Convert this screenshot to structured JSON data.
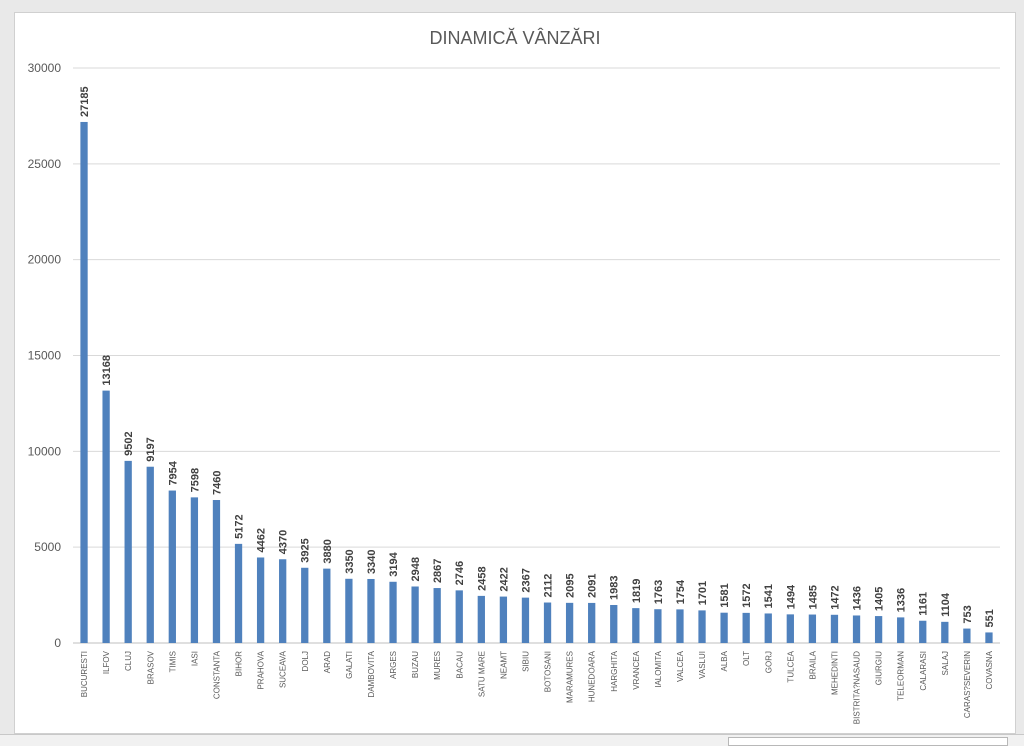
{
  "chart_data": {
    "type": "bar",
    "title": "DINAMICĂ VÂNZĂRI",
    "xlabel": "",
    "ylabel": "",
    "ylim": [
      0,
      30000
    ],
    "yticks": [
      0,
      5000,
      10000,
      15000,
      20000,
      25000,
      30000
    ],
    "grid": true,
    "legend": "none",
    "bar_color": "#4f81bd",
    "categories": [
      "BUCURESTI",
      "ILFOV",
      "CLUJ",
      "BRASOV",
      "TIMIS",
      "IASI",
      "CONSTANTA",
      "BIHOR",
      "PRAHOVA",
      "SUCEAVA",
      "DOLJ",
      "ARAD",
      "GALATI",
      "DAMBOVITA",
      "ARGES",
      "BUZAU",
      "MURES",
      "BACAU",
      "SATU MARE",
      "NEAMT",
      "SIBIU",
      "BOTOSANI",
      "MARAMURES",
      "HUNEDOARA",
      "HARGHITA",
      "VRANCEA",
      "IALOMITA",
      "VALCEA",
      "VASLUI",
      "ALBA",
      "OLT",
      "GORJ",
      "TULCEA",
      "BRAILA",
      "MEHEDINTI",
      "BISTRITA?NASAUD",
      "GIURGIU",
      "TELEORMAN",
      "CALARASI",
      "SALAJ",
      "CARAS?SEVERIN",
      "COVASNA"
    ],
    "values": [
      27185,
      13168,
      9502,
      9197,
      7954,
      7598,
      7460,
      5172,
      4462,
      4370,
      3925,
      3880,
      3350,
      3340,
      3194,
      2948,
      2867,
      2746,
      2458,
      2422,
      2367,
      2112,
      2095,
      2091,
      1983,
      1819,
      1763,
      1754,
      1701,
      1581,
      1572,
      1541,
      1494,
      1485,
      1472,
      1436,
      1405,
      1336,
      1161,
      1104,
      753,
      551
    ]
  }
}
